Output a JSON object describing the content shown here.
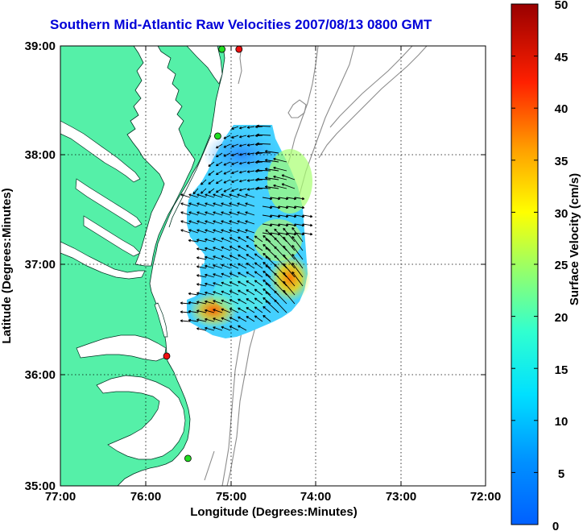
{
  "title": "Southern Mid-Atlantic Raw Velocities 2007/08/13 0800 GMT",
  "x_axis": {
    "label": "Longitude (Degrees:Minutes)",
    "ticks": [
      "77:00",
      "76:00",
      "75:00",
      "74:00",
      "73:00",
      "72:00"
    ]
  },
  "y_axis": {
    "label": "Latitude (Degrees:Minutes)",
    "ticks": [
      "39:00",
      "38:00",
      "37:00",
      "36:00",
      "35:00"
    ]
  },
  "colorbar": {
    "label": "Surface Velocity (cm/s)",
    "ticks": [
      "50",
      "45",
      "40",
      "35",
      "30",
      "25",
      "20",
      "15",
      "10",
      "5",
      "0"
    ],
    "min": 0,
    "max": 50
  },
  "colors": {
    "land": "#55f0a8",
    "title": "#0000d8",
    "bathymetry": "#8c8c8c",
    "station_green": "#22dd22",
    "station_red": "#ee1111"
  },
  "stations": [
    {
      "color": "green",
      "lon": -75.1,
      "lat": 38.97
    },
    {
      "color": "red",
      "lon": -74.9,
      "lat": 38.97
    },
    {
      "color": "green",
      "lon": -75.15,
      "lat": 38.18
    },
    {
      "color": "red",
      "lon": -75.75,
      "lat": 36.18
    },
    {
      "color": "green",
      "lon": -75.5,
      "lat": 35.25
    }
  ]
}
